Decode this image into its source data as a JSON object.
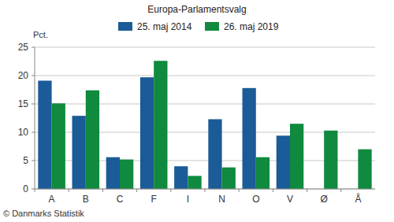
{
  "chart_data": {
    "type": "bar",
    "title": "Europa-Parlamentsvalg",
    "y_label": "Pct.",
    "source": "© Danmarks Statistik",
    "categories": [
      "A",
      "B",
      "C",
      "F",
      "I",
      "N",
      "O",
      "V",
      "Ø",
      "Å"
    ],
    "series": [
      {
        "name": "25. maj 2014",
        "color": "#1b5b97",
        "values": [
          19.1,
          12.9,
          5.6,
          19.7,
          4.0,
          12.3,
          17.8,
          9.4,
          null,
          null
        ]
      },
      {
        "name": "26. maj 2019",
        "color": "#0f8a3e",
        "values": [
          15.1,
          17.4,
          5.2,
          22.6,
          2.3,
          3.8,
          5.6,
          11.5,
          10.3,
          7.0
        ]
      }
    ],
    "ylim": [
      0,
      25
    ],
    "yticks": [
      0,
      5,
      10,
      15,
      20,
      25
    ],
    "grid": true,
    "legend": "top"
  }
}
